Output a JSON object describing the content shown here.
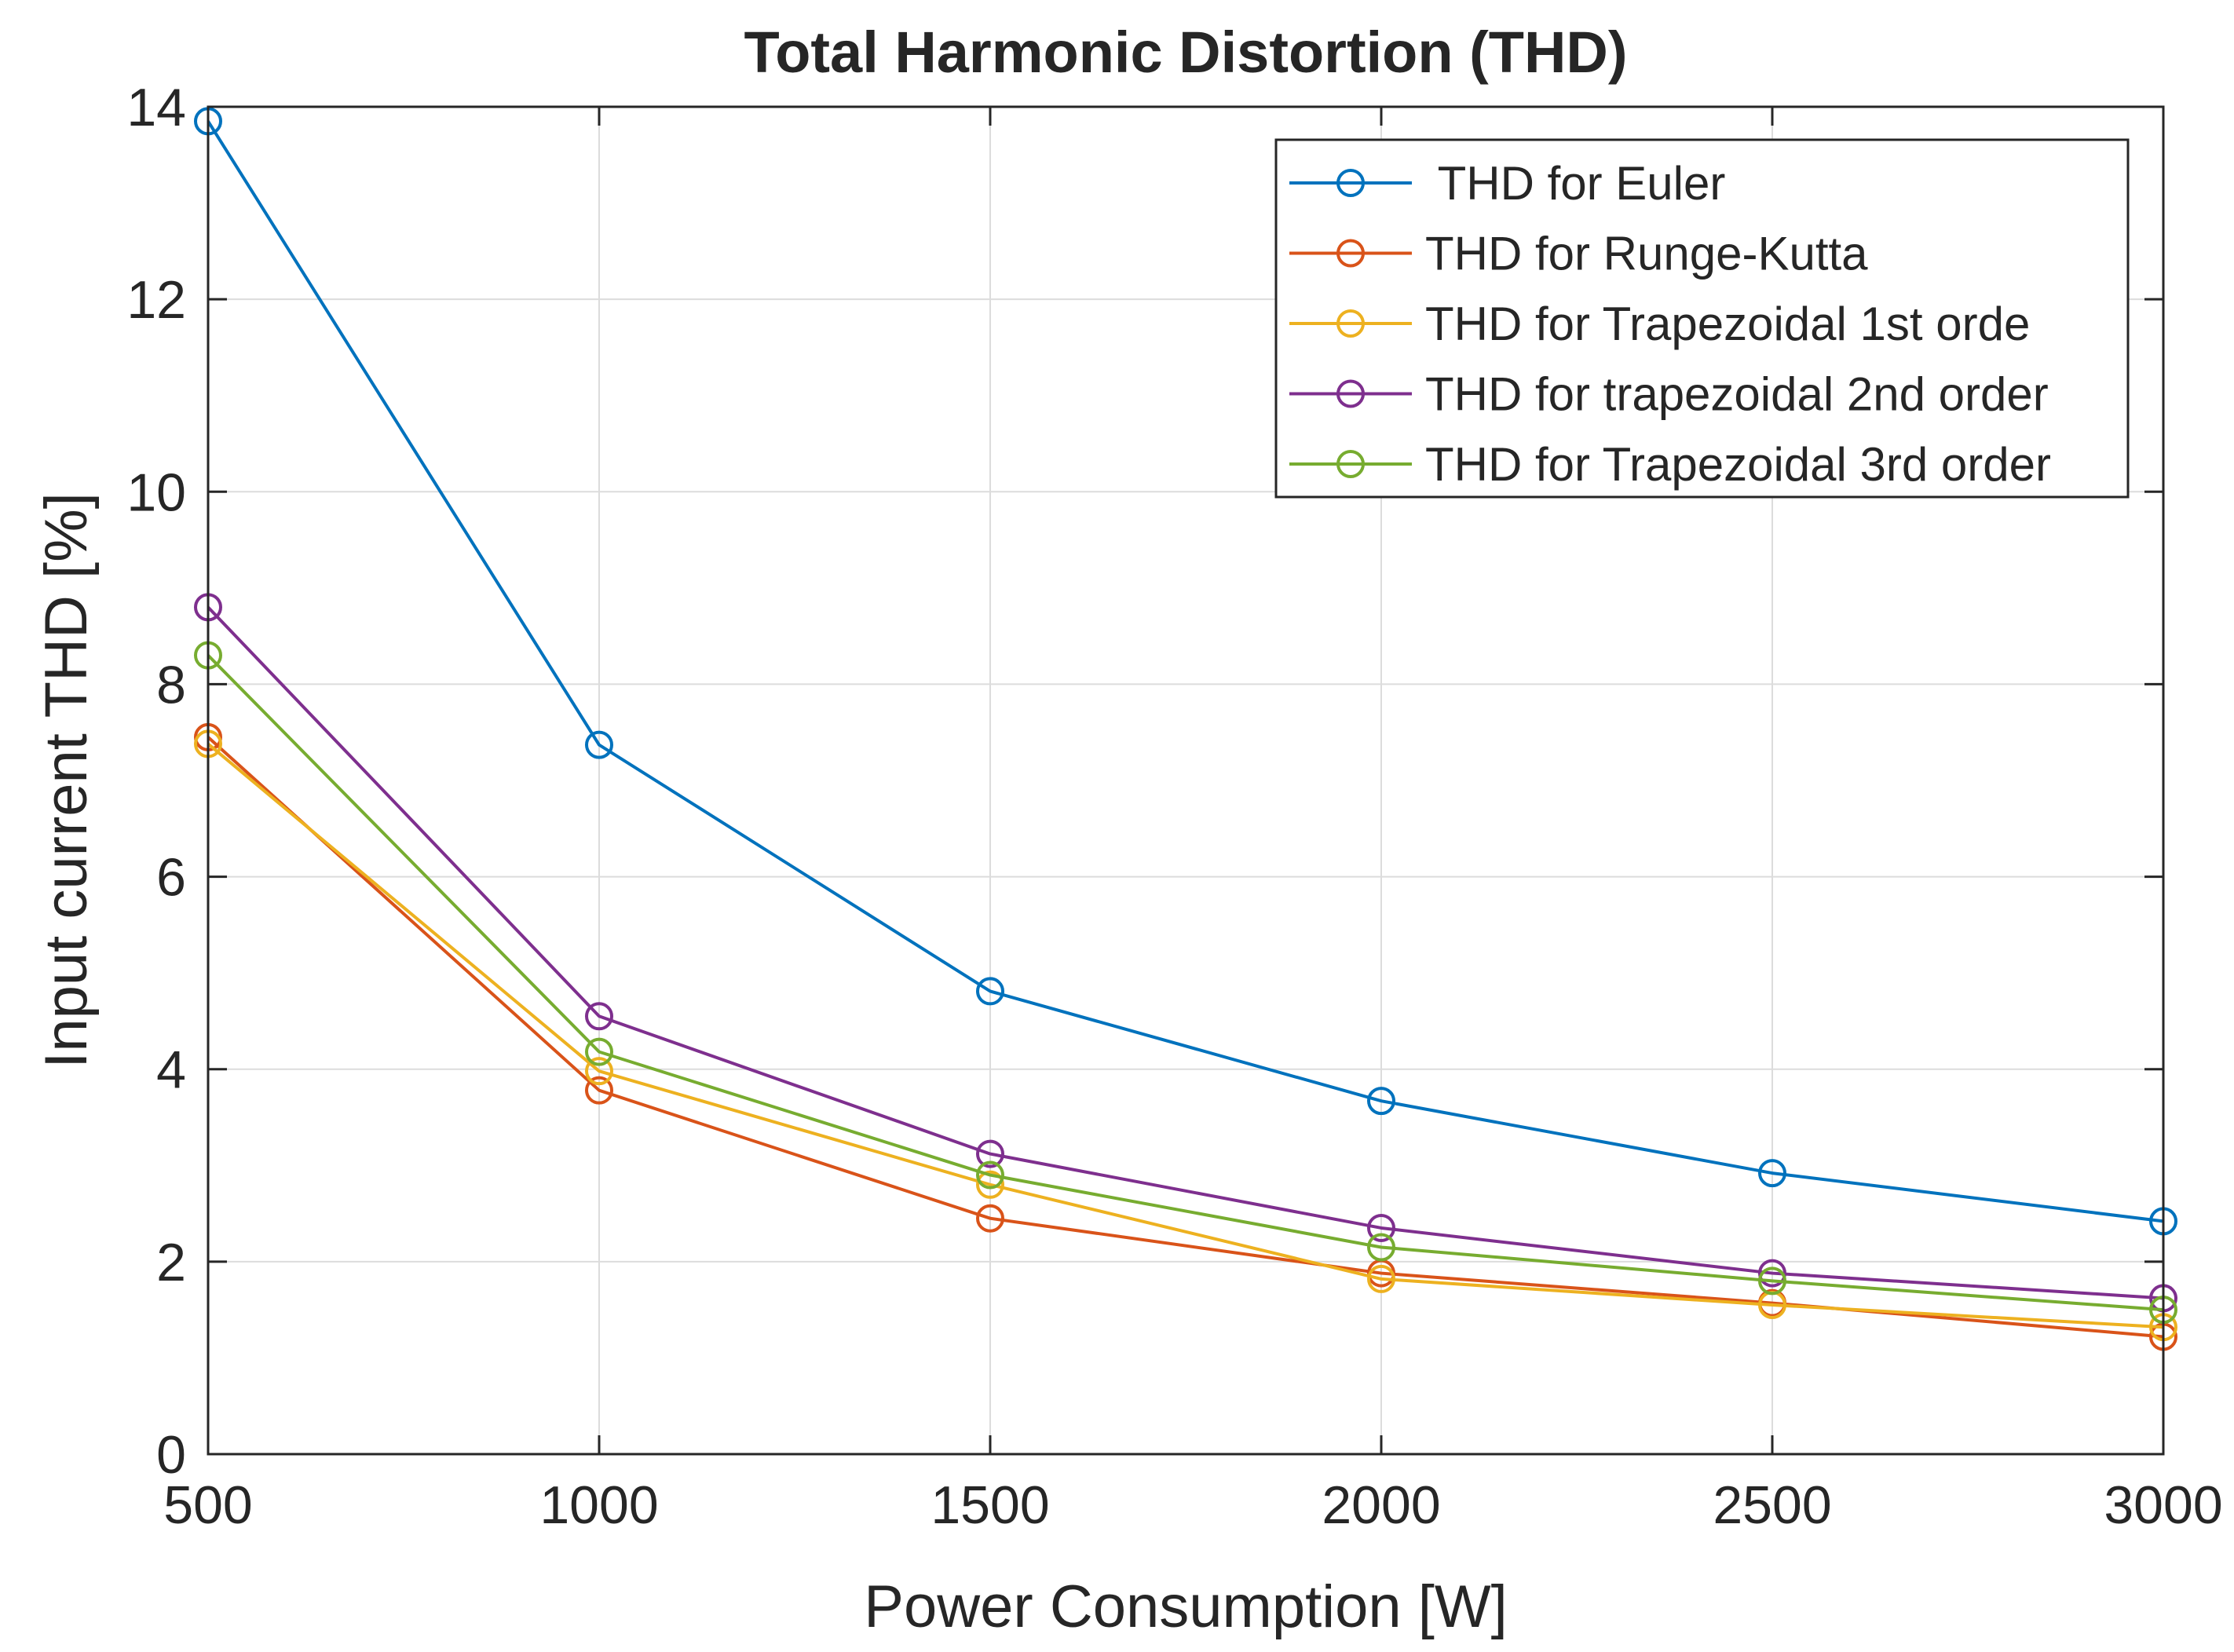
{
  "chart_data": {
    "type": "line",
    "title": "Total Harmonic Distortion (THD)",
    "xlabel": "Power Consumption [W]",
    "ylabel": "Input current THD [%]",
    "x": [
      500,
      1000,
      1500,
      2000,
      2500,
      3000
    ],
    "xlim": [
      500,
      3000
    ],
    "ylim": [
      0,
      14
    ],
    "xticks": [
      500,
      1000,
      1500,
      2000,
      2500,
      3000
    ],
    "yticks": [
      0,
      2,
      4,
      6,
      8,
      10,
      12,
      14
    ],
    "grid": true,
    "legend_position": "top-right",
    "marker": "circle",
    "series": [
      {
        "name": " THD for Euler",
        "color": "#0072BD",
        "values": [
          13.85,
          7.37,
          4.81,
          3.67,
          2.92,
          2.42
        ]
      },
      {
        "name": "THD for Runge-Kutta",
        "color": "#D95319",
        "values": [
          7.45,
          3.78,
          2.45,
          1.88,
          1.57,
          1.22
        ]
      },
      {
        "name": "THD for Trapezoidal 1st orde",
        "color": "#EDB120",
        "values": [
          7.38,
          3.98,
          2.8,
          1.82,
          1.55,
          1.32
        ]
      },
      {
        "name": "THD for trapezoidal 2nd order",
        "color": "#7E2F8E",
        "values": [
          8.8,
          4.55,
          3.12,
          2.35,
          1.88,
          1.62
        ]
      },
      {
        "name": "THD for Trapezoidal 3rd order",
        "color": "#77AC30",
        "values": [
          8.3,
          4.18,
          2.9,
          2.15,
          1.8,
          1.5
        ]
      }
    ]
  }
}
